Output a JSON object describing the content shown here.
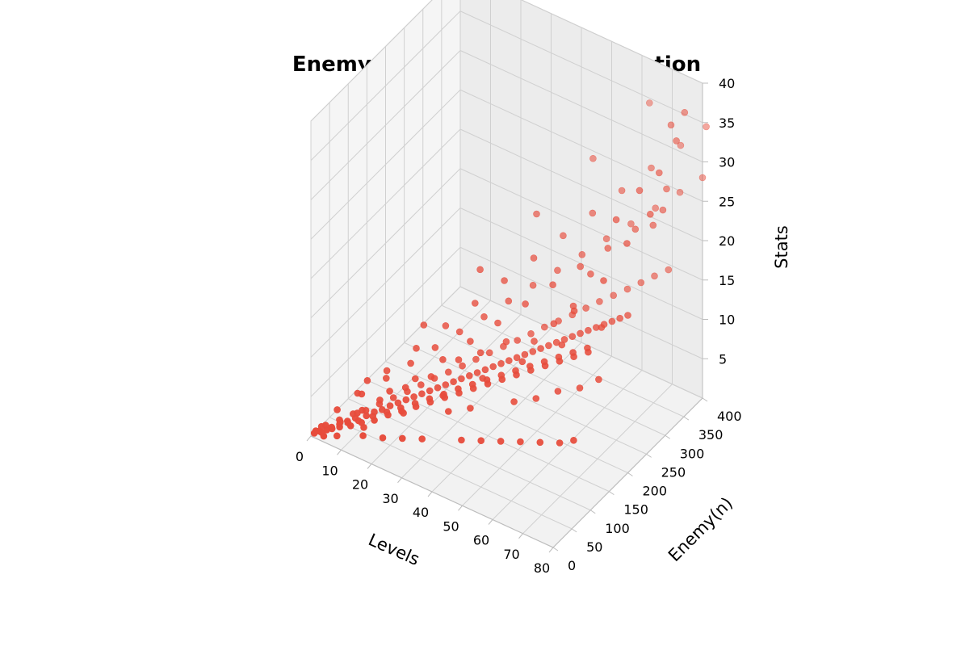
{
  "chart_data": {
    "type": "scatter",
    "title": "Enemy Strength Stats Distribution",
    "xlabel": "Levels",
    "ylabel": "Enemy(n)",
    "zlabel": "Stats",
    "xlim": [
      0,
      80
    ],
    "ylim": [
      0,
      400
    ],
    "zlim": [
      0,
      40
    ],
    "xticks": [
      0,
      10,
      20,
      30,
      40,
      50,
      60,
      70,
      80
    ],
    "yticks": [
      0,
      50,
      100,
      150,
      200,
      250,
      300,
      350,
      400
    ],
    "zticks": [
      5,
      10,
      15,
      20,
      25,
      30,
      35,
      40
    ],
    "grid": true,
    "marker_color": "#e74c3c",
    "pane_color": "#f2f2f2",
    "series": [
      {
        "points": [
          [
            1,
            1,
            0.5
          ],
          [
            2,
            6,
            0.7
          ],
          [
            3,
            4,
            0.8
          ],
          [
            4,
            10,
            1
          ],
          [
            5,
            15,
            1.3
          ],
          [
            6,
            8,
            1.6
          ],
          [
            7,
            20,
            1.8
          ],
          [
            8,
            12,
            2
          ],
          [
            9,
            25,
            2.3
          ],
          [
            10,
            18,
            2.6
          ],
          [
            11,
            30,
            2.8
          ],
          [
            12,
            9,
            3
          ],
          [
            13,
            22,
            3.2
          ],
          [
            14,
            35,
            3.4
          ],
          [
            15,
            14,
            3.7
          ],
          [
            16,
            40,
            4
          ],
          [
            17,
            28,
            4.2
          ],
          [
            18,
            45,
            4.4
          ],
          [
            19,
            16,
            4.6
          ],
          [
            20,
            50,
            5
          ],
          [
            21,
            33,
            5.2
          ],
          [
            22,
            55,
            5.5
          ],
          [
            23,
            20,
            5.8
          ],
          [
            24,
            60,
            6
          ],
          [
            25,
            38,
            6.2
          ],
          [
            26,
            65,
            6.5
          ],
          [
            27,
            24,
            6.8
          ],
          [
            28,
            70,
            7
          ],
          [
            29,
            44,
            7.2
          ],
          [
            30,
            75,
            7.5
          ],
          [
            31,
            30,
            7.8
          ],
          [
            32,
            80,
            8
          ],
          [
            33,
            50,
            8.2
          ],
          [
            34,
            85,
            8.5
          ],
          [
            35,
            36,
            8.8
          ],
          [
            36,
            90,
            9
          ],
          [
            37,
            56,
            9.2
          ],
          [
            38,
            95,
            9.5
          ],
          [
            39,
            42,
            9.8
          ],
          [
            40,
            100,
            10
          ],
          [
            41,
            62,
            10.3
          ],
          [
            42,
            105,
            10.5
          ],
          [
            43,
            48,
            10.8
          ],
          [
            44,
            110,
            11
          ],
          [
            45,
            68,
            11.3
          ],
          [
            46,
            115,
            11.5
          ],
          [
            47,
            54,
            11.8
          ],
          [
            48,
            120,
            12
          ],
          [
            49,
            74,
            12.3
          ],
          [
            50,
            125,
            12.5
          ],
          [
            51,
            60,
            12.8
          ],
          [
            52,
            130,
            13
          ],
          [
            53,
            80,
            13.3
          ],
          [
            54,
            135,
            13.5
          ],
          [
            55,
            66,
            13.8
          ],
          [
            56,
            140,
            14
          ],
          [
            57,
            86,
            14.3
          ],
          [
            58,
            145,
            14.5
          ],
          [
            59,
            72,
            14.8
          ],
          [
            60,
            150,
            15
          ],
          [
            61,
            92,
            15.3
          ],
          [
            62,
            155,
            15.5
          ],
          [
            63,
            78,
            15.8
          ],
          [
            64,
            160,
            16
          ],
          [
            65,
            98,
            16.3
          ],
          [
            66,
            165,
            16.5
          ],
          [
            67,
            84,
            16.8
          ],
          [
            68,
            170,
            17
          ],
          [
            69,
            104,
            17.3
          ],
          [
            70,
            175,
            17.5
          ],
          [
            71,
            90,
            17.8
          ],
          [
            72,
            180,
            18
          ],
          [
            73,
            110,
            18.3
          ],
          [
            74,
            185,
            18.5
          ],
          [
            75,
            96,
            18.8
          ],
          [
            76,
            190,
            19
          ],
          [
            77,
            116,
            19.3
          ],
          [
            78,
            195,
            19.5
          ],
          [
            79,
            102,
            19.8
          ],
          [
            80,
            200,
            20
          ],
          [
            3,
            15,
            1.2
          ],
          [
            6,
            28,
            1.8
          ],
          [
            9,
            40,
            2.5
          ],
          [
            12,
            50,
            3
          ],
          [
            15,
            62,
            3.8
          ],
          [
            18,
            75,
            4.5
          ],
          [
            21,
            88,
            5.2
          ],
          [
            24,
            100,
            6
          ],
          [
            27,
            112,
            6.8
          ],
          [
            30,
            125,
            7.5
          ],
          [
            33,
            138,
            8.2
          ],
          [
            36,
            150,
            9
          ],
          [
            39,
            162,
            9.8
          ],
          [
            42,
            175,
            10.5
          ],
          [
            45,
            188,
            11.2
          ],
          [
            48,
            200,
            12
          ],
          [
            51,
            212,
            12.8
          ],
          [
            54,
            225,
            13.5
          ],
          [
            57,
            238,
            14.2
          ],
          [
            60,
            250,
            15
          ],
          [
            63,
            262,
            15.8
          ],
          [
            66,
            275,
            16.5
          ],
          [
            69,
            288,
            17.2
          ],
          [
            72,
            300,
            18
          ],
          [
            75,
            312,
            18.8
          ],
          [
            78,
            325,
            19.5
          ],
          [
            5,
            30,
            2.8
          ],
          [
            10,
            55,
            4.5
          ],
          [
            15,
            80,
            6.2
          ],
          [
            20,
            105,
            7.8
          ],
          [
            25,
            130,
            9.5
          ],
          [
            30,
            155,
            11.2
          ],
          [
            35,
            180,
            12.8
          ],
          [
            40,
            205,
            14.5
          ],
          [
            45,
            230,
            16.2
          ],
          [
            50,
            255,
            17.8
          ],
          [
            55,
            280,
            19.5
          ],
          [
            60,
            305,
            21.2
          ],
          [
            65,
            330,
            22.8
          ],
          [
            70,
            355,
            24.5
          ],
          [
            75,
            380,
            26.2
          ],
          [
            80,
            400,
            28
          ],
          [
            8,
            60,
            4
          ],
          [
            14,
            90,
            6.5
          ],
          [
            20,
            120,
            9
          ],
          [
            26,
            150,
            11.5
          ],
          [
            32,
            180,
            14
          ],
          [
            38,
            210,
            16.5
          ],
          [
            44,
            240,
            19
          ],
          [
            50,
            270,
            21.5
          ],
          [
            56,
            300,
            24
          ],
          [
            62,
            330,
            26.5
          ],
          [
            68,
            360,
            29
          ],
          [
            74,
            390,
            31.5
          ],
          [
            80,
            410,
            34
          ],
          [
            10,
            70,
            5.5
          ],
          [
            20,
            140,
            11
          ],
          [
            30,
            210,
            16.5
          ],
          [
            40,
            280,
            22
          ],
          [
            50,
            350,
            27.5
          ],
          [
            60,
            420,
            33
          ],
          [
            12,
            40,
            3.5
          ],
          [
            18,
            65,
            5.8
          ],
          [
            24,
            85,
            7.5
          ],
          [
            30,
            110,
            9.8
          ],
          [
            36,
            135,
            12
          ],
          [
            42,
            160,
            14.2
          ],
          [
            48,
            185,
            16.5
          ],
          [
            54,
            210,
            18.8
          ],
          [
            60,
            235,
            21
          ],
          [
            66,
            260,
            23.2
          ],
          [
            72,
            285,
            25.5
          ],
          [
            78,
            310,
            27.8
          ],
          [
            15,
            20,
            2.8
          ],
          [
            25,
            45,
            5.2
          ],
          [
            35,
            70,
            8
          ],
          [
            45,
            95,
            10.8
          ],
          [
            55,
            120,
            13.5
          ],
          [
            65,
            145,
            16.2
          ],
          [
            75,
            170,
            19
          ],
          [
            4,
            2,
            0.6
          ],
          [
            8,
            5,
            1.2
          ],
          [
            16,
            10,
            2.4
          ],
          [
            22,
            14,
            3
          ],
          [
            28,
            18,
            3.8
          ],
          [
            34,
            22,
            4.6
          ],
          [
            46,
            30,
            6.2
          ],
          [
            52,
            34,
            7
          ],
          [
            58,
            38,
            7.8
          ],
          [
            64,
            42,
            8.6
          ],
          [
            70,
            46,
            9.4
          ],
          [
            76,
            50,
            10.2
          ],
          [
            80,
            55,
            11
          ],
          [
            38,
            60,
            7
          ],
          [
            44,
            70,
            8
          ],
          [
            56,
            90,
            10
          ],
          [
            62,
            100,
            11
          ],
          [
            68,
            110,
            12.5
          ],
          [
            74,
            120,
            13.5
          ],
          [
            79,
            130,
            15
          ],
          [
            66,
            170,
            19.5
          ],
          [
            72,
            200,
            23
          ],
          [
            76,
            230,
            27
          ],
          [
            80,
            260,
            30
          ],
          [
            70,
            250,
            28
          ],
          [
            74,
            280,
            31
          ],
          [
            78,
            300,
            33
          ],
          [
            80,
            330,
            36
          ],
          [
            79,
            360,
            38
          ],
          [
            77,
            340,
            37
          ],
          [
            76,
            300,
            26
          ],
          [
            78,
            320,
            30
          ],
          [
            62,
            200,
            18
          ],
          [
            64,
            230,
            21
          ],
          [
            58,
            180,
            16
          ],
          [
            54,
            160,
            14
          ],
          [
            46,
            150,
            13
          ],
          [
            40,
            130,
            11.5
          ],
          [
            34,
            120,
            10
          ],
          [
            28,
            95,
            8
          ],
          [
            22,
            75,
            6.5
          ],
          [
            16,
            55,
            4.8
          ],
          [
            11,
            35,
            3.2
          ],
          [
            7,
            22,
            2
          ],
          [
            2,
            12,
            1
          ],
          [
            1,
            5,
            0.6
          ]
        ]
      }
    ]
  }
}
